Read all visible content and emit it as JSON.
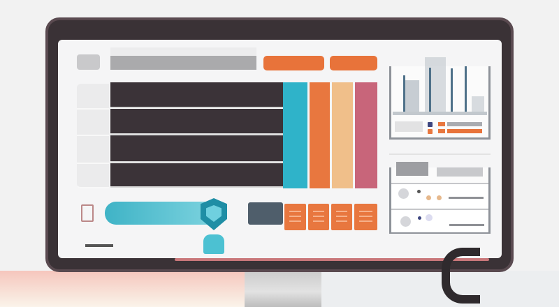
{
  "colors": {
    "bezel": "#3a3236",
    "screen": "#f5f5f6",
    "accent_orange": "#e8733a",
    "table_row_dark": "#3b3338",
    "column_cyan": "#2fb3c9",
    "column_orange": "#e8773f",
    "column_peach": "#f0bf8a",
    "column_pink": "#c8657a",
    "teal": "#3fb3c6",
    "slate_button": "#4f5e6b"
  },
  "icons": [
    "app-logo-icon",
    "shield-icon",
    "device-icon",
    "cable-icon"
  ],
  "table": {
    "row_count": 4
  }
}
